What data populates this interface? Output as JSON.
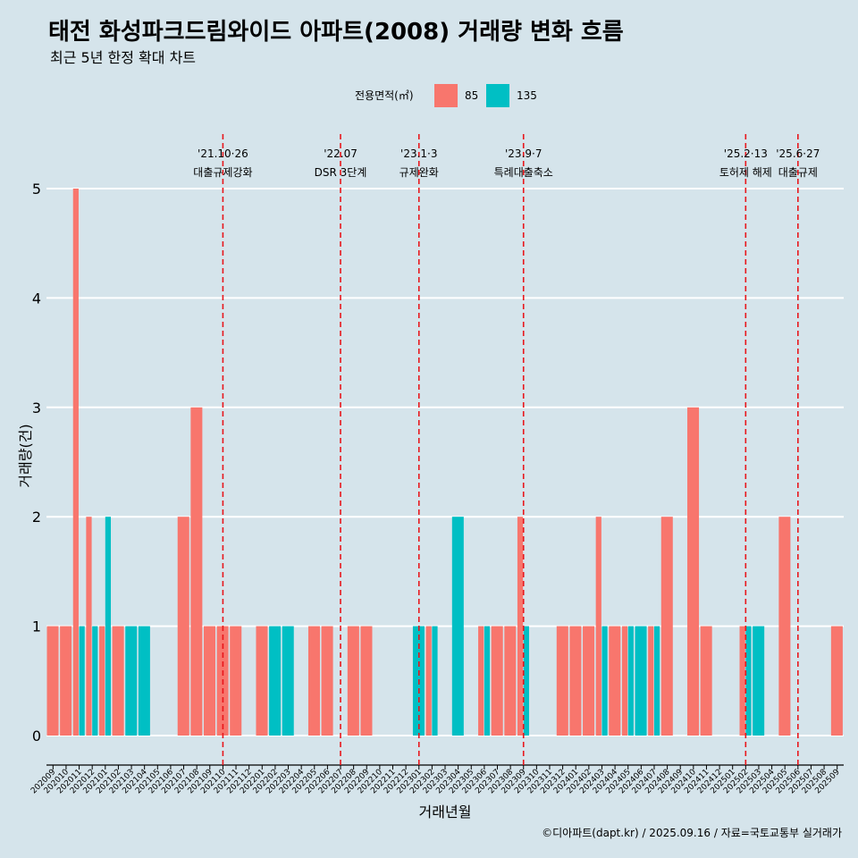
{
  "chart_data": {
    "type": "bar",
    "title": "태전 화성파크드림와이드 아파트(2008) 거래량 변화 흐름",
    "subtitle": "최근 5년 한정 확대 차트",
    "xlabel": "거래년월",
    "ylabel": "거래량(건)",
    "ylim": [
      0,
      5
    ],
    "yticks": [
      0,
      1,
      2,
      3,
      4,
      5
    ],
    "grid": true,
    "legend": {
      "title": "전용면적(㎡)",
      "placement": "top"
    },
    "categories": [
      "202009",
      "202010",
      "202011",
      "202012",
      "202101",
      "202102",
      "202103",
      "202104",
      "202105",
      "202106",
      "202107",
      "202108",
      "202109",
      "202110",
      "202111",
      "202112",
      "202201",
      "202202",
      "202203",
      "202204",
      "202205",
      "202206",
      "202207",
      "202208",
      "202209",
      "202210",
      "202211",
      "202212",
      "202301",
      "202302",
      "202303",
      "202304",
      "202305",
      "202306",
      "202307",
      "202308",
      "202309",
      "202310",
      "202311",
      "202312",
      "202401",
      "202402",
      "202403",
      "202404",
      "202405",
      "202406",
      "202407",
      "202408",
      "202409",
      "202410",
      "202411",
      "202412",
      "202501",
      "202502",
      "202503",
      "202504",
      "202505",
      "202506",
      "202507",
      "202508",
      "202509"
    ],
    "series": [
      {
        "name": "85",
        "color": "#f8766d",
        "values": [
          1,
          1,
          5,
          2,
          1,
          1,
          0,
          0,
          0,
          0,
          2,
          3,
          1,
          1,
          1,
          0,
          1,
          0,
          0,
          0,
          1,
          1,
          0,
          1,
          1,
          0,
          0,
          0,
          0,
          1,
          0,
          0,
          0,
          1,
          1,
          1,
          2,
          0,
          0,
          1,
          1,
          1,
          2,
          1,
          1,
          0,
          1,
          2,
          0,
          3,
          1,
          0,
          0,
          1,
          0,
          0,
          2,
          0,
          0,
          0,
          1
        ]
      },
      {
        "name": "135",
        "color": "#00bfc4",
        "values": [
          0,
          0,
          1,
          1,
          2,
          0,
          1,
          1,
          0,
          0,
          0,
          0,
          0,
          0,
          0,
          0,
          0,
          1,
          1,
          0,
          0,
          0,
          0,
          0,
          0,
          0,
          0,
          0,
          1,
          1,
          0,
          2,
          0,
          1,
          0,
          0,
          1,
          0,
          0,
          0,
          0,
          0,
          1,
          0,
          1,
          1,
          1,
          0,
          0,
          0,
          0,
          0,
          0,
          1,
          1,
          0,
          0,
          0,
          0,
          0,
          0
        ]
      }
    ],
    "annotations": [
      {
        "date_label": "'21.10·26",
        "text": "대출규제강화",
        "at": "202110"
      },
      {
        "date_label": "'22.07",
        "text": "DSR 3단계",
        "at": "202207"
      },
      {
        "date_label": "'23.1·3",
        "text": "규제완화",
        "at": "202301"
      },
      {
        "date_label": "'23.9·7",
        "text": "특례대출축소",
        "at": "202309"
      },
      {
        "date_label": "'25.2·13",
        "text": "토허제 해제",
        "at": "202502"
      },
      {
        "date_label": "'25.6·27",
        "text": "대출규제",
        "at": "202506"
      }
    ],
    "annotation_line_color": "#e8161b",
    "caption": "©디아파트(dapt.kr) / 2025.09.16 / 자료=국토교통부 실거래가"
  }
}
